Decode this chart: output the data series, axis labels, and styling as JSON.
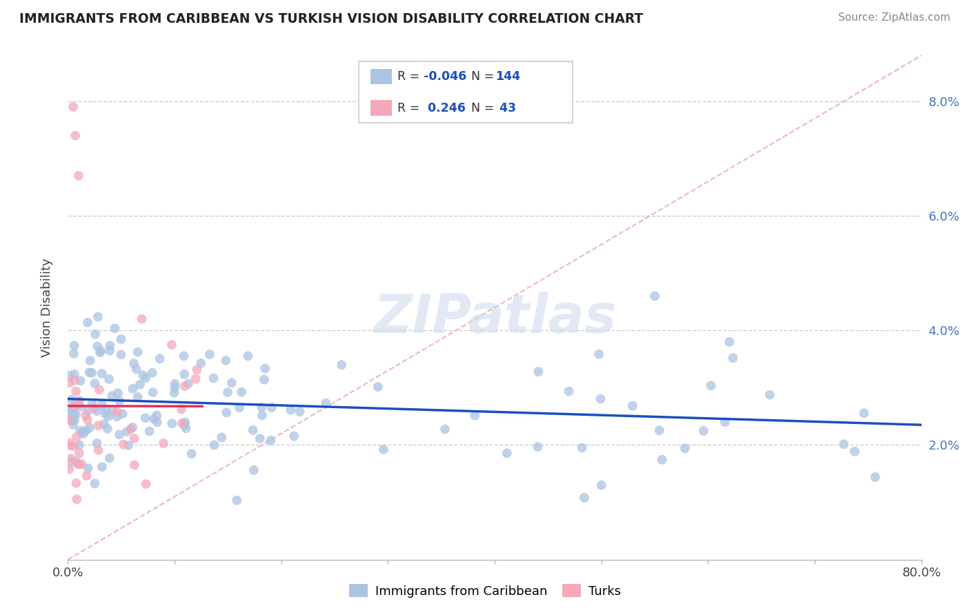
{
  "title": "IMMIGRANTS FROM CARIBBEAN VS TURKISH VISION DISABILITY CORRELATION CHART",
  "source": "Source: ZipAtlas.com",
  "xlabel_label": "Immigrants from Caribbean",
  "xlabel_label2": "Turks",
  "ylabel": "Vision Disability",
  "x_min": 0.0,
  "x_max": 0.8,
  "y_min": 0.0,
  "y_max": 0.088,
  "blue_R": -0.046,
  "blue_N": 144,
  "pink_R": 0.246,
  "pink_N": 43,
  "blue_color": "#aac4e2",
  "pink_color": "#f4a8ba",
  "blue_line_color": "#1a4fbf",
  "pink_line_color": "#e03060",
  "diagonal_color": "#e8b0b8",
  "watermark": "ZIPatlas",
  "background_color": "#ffffff"
}
